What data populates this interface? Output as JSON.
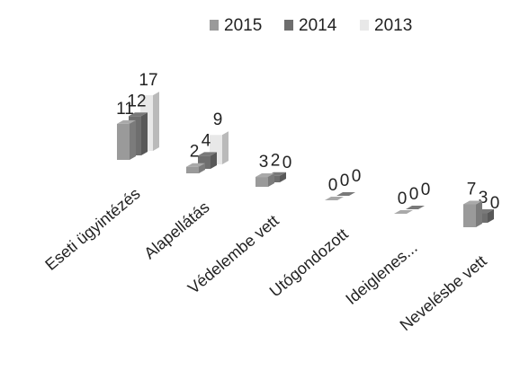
{
  "chart_data": {
    "type": "bar3d",
    "categories": [
      "Eseti ügyintézés",
      "Alapellátás",
      "Védelembe vett",
      "Utógondozott",
      "Ideiglenes...",
      "Nevelésbe vett"
    ],
    "series": [
      {
        "name": "2015",
        "color": "#9a9a9a",
        "values": [
          11,
          2,
          3,
          0,
          0,
          7
        ]
      },
      {
        "name": "2014",
        "color": "#6e6e6e",
        "values": [
          12,
          4,
          2,
          0,
          0,
          3
        ]
      },
      {
        "name": "2013",
        "color": "#e8e8e8",
        "values": [
          17,
          9,
          0,
          0,
          0,
          0
        ]
      }
    ],
    "legend": "top"
  }
}
